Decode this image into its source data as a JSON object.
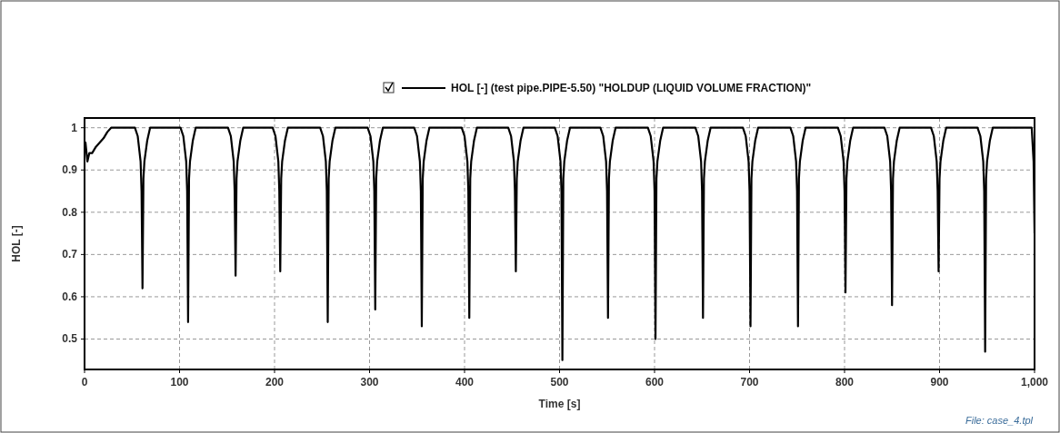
{
  "chart_data": {
    "type": "line",
    "xlabel": "Time [s]",
    "ylabel": "HOL [-]",
    "legend": "top",
    "grid": true,
    "line_style": "solid",
    "xlim": [
      0,
      1000
    ],
    "ylim": [
      0.428,
      1.023
    ],
    "xticks": [
      0,
      100,
      200,
      300,
      400,
      500,
      600,
      700,
      800,
      900,
      {
        "value": 1000,
        "label": "1,000"
      }
    ],
    "yticks": [
      0.5,
      0.6,
      0.7,
      0.8,
      0.9,
      1
    ],
    "annotations": [
      "File: case_4.tpl"
    ],
    "series": [
      {
        "name": "HOL [-] (test pipe.PIPE-5.50) \"HOLDUP (LIQUID VOLUME FRACTION)\"",
        "color": "#000000",
        "x": [
          0,
          1,
          3,
          5,
          8,
          12,
          16,
          20,
          24,
          28,
          53,
          56,
          59,
          60,
          61,
          62,
          63,
          66,
          69,
          101,
          104,
          107,
          108,
          109,
          110,
          111,
          114,
          117,
          151,
          154,
          157,
          158,
          159,
          160,
          161,
          164,
          167,
          198,
          201,
          204,
          205,
          206,
          207,
          208,
          211,
          214,
          248,
          251,
          254,
          255,
          256,
          257,
          258,
          261,
          264,
          298,
          301,
          304,
          305,
          306,
          307,
          308,
          311,
          314,
          347,
          350,
          353,
          354,
          355,
          356,
          357,
          360,
          363,
          397,
          400,
          403,
          404,
          405,
          406,
          407,
          410,
          413,
          446,
          449,
          452,
          453,
          454,
          455,
          456,
          459,
          462,
          495,
          498,
          501,
          502,
          503,
          504,
          505,
          508,
          511,
          543,
          546,
          549,
          550,
          551,
          552,
          553,
          556,
          559,
          593,
          596,
          599,
          600,
          601,
          602,
          603,
          606,
          609,
          643,
          646,
          649,
          650,
          651,
          652,
          653,
          656,
          659,
          693,
          696,
          699,
          700,
          701,
          702,
          703,
          706,
          709,
          743,
          746,
          749,
          750,
          751,
          752,
          753,
          756,
          759,
          793,
          796,
          799,
          800,
          801,
          802,
          803,
          806,
          809,
          842,
          845,
          848,
          849,
          850,
          851,
          852,
          855,
          858,
          891,
          894,
          897,
          898,
          899,
          900,
          901,
          904,
          907,
          940,
          943,
          946,
          947,
          948,
          949,
          950,
          953,
          956,
          994,
          997,
          999,
          1000
        ],
        "values": [
          0.96,
          0.965,
          0.92,
          0.94,
          0.94,
          0.955,
          0.965,
          0.975,
          0.99,
          1,
          1,
          0.98,
          0.92,
          0.85,
          0.62,
          0.88,
          0.92,
          0.97,
          1,
          1,
          0.98,
          0.92,
          0.85,
          0.54,
          0.88,
          0.92,
          0.97,
          1,
          1,
          0.98,
          0.92,
          0.85,
          0.65,
          0.88,
          0.92,
          0.97,
          1,
          1,
          0.98,
          0.92,
          0.85,
          0.66,
          0.88,
          0.92,
          0.97,
          1,
          1,
          0.98,
          0.92,
          0.85,
          0.54,
          0.88,
          0.92,
          0.97,
          1,
          1,
          0.98,
          0.92,
          0.85,
          0.57,
          0.88,
          0.92,
          0.97,
          1,
          1,
          0.98,
          0.92,
          0.85,
          0.53,
          0.88,
          0.92,
          0.97,
          1,
          1,
          0.98,
          0.92,
          0.85,
          0.55,
          0.88,
          0.92,
          0.97,
          1,
          1,
          0.98,
          0.92,
          0.85,
          0.66,
          0.88,
          0.92,
          0.97,
          1,
          1,
          0.98,
          0.92,
          0.85,
          0.45,
          0.88,
          0.92,
          0.97,
          1,
          1,
          0.98,
          0.92,
          0.85,
          0.55,
          0.88,
          0.92,
          0.97,
          1,
          1,
          0.98,
          0.92,
          0.85,
          0.5,
          0.88,
          0.92,
          0.97,
          1,
          1,
          0.98,
          0.92,
          0.85,
          0.55,
          0.88,
          0.92,
          0.97,
          1,
          1,
          0.98,
          0.92,
          0.85,
          0.53,
          0.88,
          0.92,
          0.97,
          1,
          1,
          0.98,
          0.92,
          0.85,
          0.53,
          0.88,
          0.92,
          0.97,
          1,
          1,
          0.98,
          0.92,
          0.85,
          0.61,
          0.88,
          0.92,
          0.97,
          1,
          1,
          0.98,
          0.92,
          0.85,
          0.58,
          0.88,
          0.92,
          0.97,
          1,
          1,
          0.98,
          0.92,
          0.85,
          0.66,
          0.88,
          0.92,
          0.97,
          1,
          1,
          0.98,
          0.92,
          0.85,
          0.47,
          0.88,
          0.92,
          0.97,
          1,
          1,
          1,
          0.92,
          0.75
        ]
      }
    ]
  }
}
